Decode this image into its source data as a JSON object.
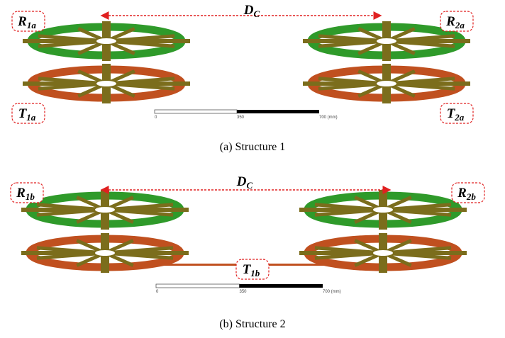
{
  "panels": [
    {
      "distance": {
        "main": "D",
        "sub": "C"
      },
      "labels": [
        {
          "main": "R",
          "sub": "1a"
        },
        {
          "main": "R",
          "sub": "2a"
        },
        {
          "main": "T",
          "sub": "1a"
        },
        {
          "main": "T",
          "sub": "2a"
        }
      ],
      "scale": [
        "0",
        "350",
        "700 (mm)"
      ],
      "caption": "(a) Structure 1"
    },
    {
      "distance": {
        "main": "D",
        "sub": "C"
      },
      "labels": [
        {
          "main": "R",
          "sub": "1b"
        },
        {
          "main": "R",
          "sub": "2b"
        },
        {
          "main": "T",
          "sub": "1b"
        }
      ],
      "scale": [
        "0",
        "350",
        "700 (mm)"
      ],
      "caption": "(b) Structure 2"
    }
  ]
}
